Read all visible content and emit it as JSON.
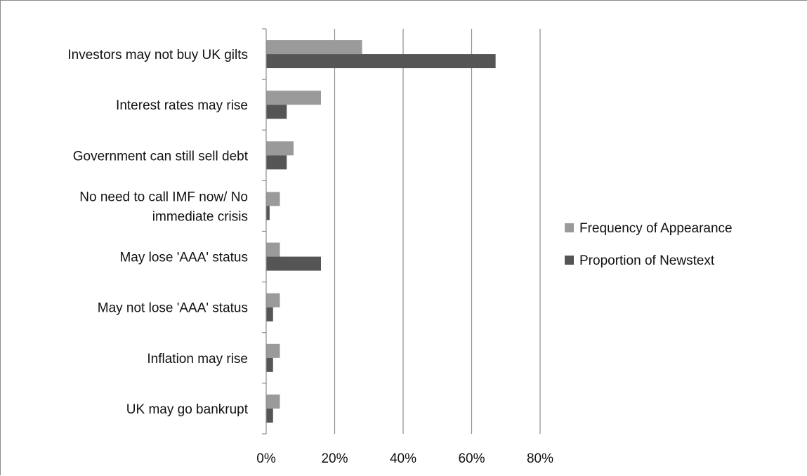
{
  "chart_data": {
    "type": "bar",
    "orientation": "horizontal",
    "categories": [
      "Investors may not buy UK gilts",
      "Interest rates may rise",
      "Government can still sell debt",
      "No need to call IMF now/ No immediate crisis",
      "May lose 'AAA' status",
      "May not lose 'AAA' status",
      "Inflation may rise",
      "UK may go bankrupt"
    ],
    "category_lines": [
      [
        "Investors may not buy UK gilts"
      ],
      [
        "Interest rates may rise"
      ],
      [
        "Government can still sell debt"
      ],
      [
        "No need to call IMF now/ No",
        "immediate crisis"
      ],
      [
        "May lose 'AAA' status"
      ],
      [
        "May not lose 'AAA' status"
      ],
      [
        "Inflation may rise"
      ],
      [
        "UK may go bankrupt"
      ]
    ],
    "series": [
      {
        "name": "Frequency of Appearance",
        "color": "#9a9a9a",
        "values": [
          0.28,
          0.16,
          0.08,
          0.04,
          0.04,
          0.04,
          0.04,
          0.04
        ]
      },
      {
        "name": "Proportion of Newstext",
        "color": "#555555",
        "values": [
          0.67,
          0.06,
          0.06,
          0.01,
          0.16,
          0.02,
          0.02,
          0.02
        ]
      }
    ],
    "xlim": [
      0,
      0.8
    ],
    "xticks": [
      0,
      0.2,
      0.4,
      0.6,
      0.8
    ],
    "xtick_labels": [
      "0%",
      "20%",
      "40%",
      "60%",
      "80%"
    ],
    "grid": true,
    "legend_position": "right"
  }
}
